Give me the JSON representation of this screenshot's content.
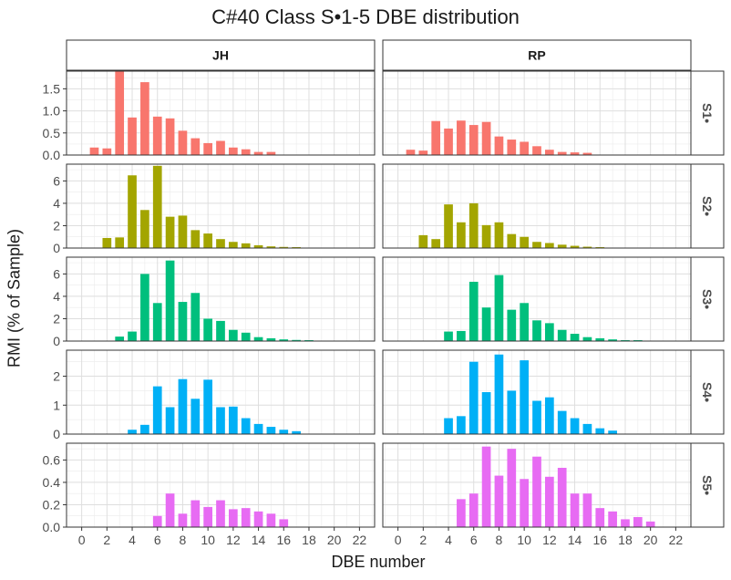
{
  "chart_data": {
    "type": "bar",
    "title": "C#40 Class S•1-5 DBE distribution",
    "xlabel": "DBE number",
    "ylabel": "RMI (% of Sample)",
    "xlim": [
      -1.2,
      23.2
    ],
    "x_ticks": [
      0,
      2,
      4,
      6,
      8,
      10,
      12,
      14,
      16,
      18,
      20,
      22
    ],
    "grid": true,
    "legend": "none",
    "facet_columns": [
      "JH",
      "RP"
    ],
    "facet_rows": [
      "S1•",
      "S2•",
      "S3•",
      "S4•",
      "S5•"
    ],
    "row_colors": [
      "#F8766D",
      "#A3A500",
      "#00BF7D",
      "#00B0F6",
      "#E76BF3"
    ],
    "row_ylim": [
      [
        0,
        1.9
      ],
      [
        0,
        7.5
      ],
      [
        0,
        7.5
      ],
      [
        0,
        2.9
      ],
      [
        0,
        0.75
      ]
    ],
    "row_yticks": [
      [
        "0.0",
        "0.5",
        "1.0",
        "1.5"
      ],
      [
        "0",
        "2",
        "4",
        "6"
      ],
      [
        "0",
        "2",
        "4",
        "6"
      ],
      [
        "0",
        "1",
        "2"
      ],
      [
        "0.0",
        "0.2",
        "0.4",
        "0.6"
      ]
    ],
    "panels": [
      {
        "row": 0,
        "col": 0,
        "x": [
          1,
          2,
          3,
          4,
          5,
          6,
          7,
          8,
          9,
          10,
          11,
          12,
          13,
          14,
          15
        ],
        "values": [
          0.17,
          0.15,
          1.9,
          0.85,
          1.65,
          0.87,
          0.83,
          0.55,
          0.38,
          0.27,
          0.32,
          0.17,
          0.13,
          0.07,
          0.07
        ]
      },
      {
        "row": 0,
        "col": 1,
        "x": [
          1,
          2,
          3,
          4,
          5,
          6,
          7,
          8,
          9,
          10,
          11,
          12,
          13,
          14,
          15
        ],
        "values": [
          0.12,
          0.1,
          0.77,
          0.6,
          0.78,
          0.68,
          0.75,
          0.42,
          0.35,
          0.3,
          0.2,
          0.12,
          0.07,
          0.06,
          0.05
        ]
      },
      {
        "row": 1,
        "col": 0,
        "x": [
          2,
          3,
          4,
          5,
          6,
          7,
          8,
          9,
          10,
          11,
          12,
          13,
          14,
          15,
          16,
          17
        ],
        "values": [
          0.9,
          0.95,
          6.5,
          3.4,
          7.35,
          2.8,
          2.9,
          1.6,
          1.3,
          0.8,
          0.55,
          0.42,
          0.25,
          0.15,
          0.1,
          0.08
        ]
      },
      {
        "row": 1,
        "col": 1,
        "x": [
          2,
          3,
          4,
          5,
          6,
          7,
          8,
          9,
          10,
          11,
          12,
          13,
          14,
          15,
          16
        ],
        "values": [
          1.15,
          0.8,
          3.9,
          2.3,
          4.0,
          2.05,
          2.3,
          1.25,
          1.0,
          0.55,
          0.45,
          0.3,
          0.2,
          0.12,
          0.08
        ]
      },
      {
        "row": 2,
        "col": 0,
        "x": [
          3,
          4,
          5,
          6,
          7,
          8,
          9,
          10,
          11,
          12,
          13,
          14,
          15,
          16,
          17,
          18
        ],
        "values": [
          0.4,
          0.85,
          6.0,
          3.4,
          7.2,
          3.5,
          4.3,
          2.0,
          1.8,
          1.0,
          0.75,
          0.35,
          0.25,
          0.15,
          0.1,
          0.08
        ]
      },
      {
        "row": 2,
        "col": 1,
        "x": [
          4,
          5,
          6,
          7,
          8,
          9,
          10,
          11,
          12,
          13,
          14,
          15,
          16,
          17,
          18,
          19
        ],
        "values": [
          0.85,
          0.9,
          5.3,
          3.0,
          5.9,
          2.8,
          3.4,
          1.85,
          1.6,
          1.0,
          0.65,
          0.35,
          0.25,
          0.15,
          0.08,
          0.08
        ]
      },
      {
        "row": 3,
        "col": 0,
        "x": [
          4,
          5,
          6,
          7,
          8,
          9,
          10,
          11,
          12,
          13,
          14,
          15,
          16,
          17
        ],
        "values": [
          0.15,
          0.32,
          1.65,
          0.93,
          1.9,
          1.22,
          1.88,
          0.93,
          0.95,
          0.55,
          0.35,
          0.25,
          0.15,
          0.1
        ]
      },
      {
        "row": 3,
        "col": 1,
        "x": [
          4,
          5,
          6,
          7,
          8,
          9,
          10,
          11,
          12,
          13,
          14,
          15,
          16,
          17
        ],
        "values": [
          0.55,
          0.62,
          2.5,
          1.45,
          2.75,
          1.5,
          2.55,
          1.15,
          1.27,
          0.8,
          0.55,
          0.35,
          0.2,
          0.12
        ]
      },
      {
        "row": 4,
        "col": 0,
        "x": [
          6,
          7,
          8,
          9,
          10,
          11,
          12,
          13,
          14,
          15,
          16
        ],
        "values": [
          0.1,
          0.3,
          0.12,
          0.24,
          0.18,
          0.24,
          0.16,
          0.17,
          0.14,
          0.12,
          0.07
        ]
      },
      {
        "row": 4,
        "col": 1,
        "x": [
          5,
          6,
          7,
          8,
          9,
          10,
          11,
          12,
          13,
          14,
          15,
          16,
          17,
          18,
          19,
          20
        ],
        "values": [
          0.25,
          0.3,
          0.72,
          0.46,
          0.7,
          0.43,
          0.63,
          0.45,
          0.53,
          0.3,
          0.3,
          0.17,
          0.14,
          0.07,
          0.09,
          0.05
        ]
      }
    ]
  }
}
